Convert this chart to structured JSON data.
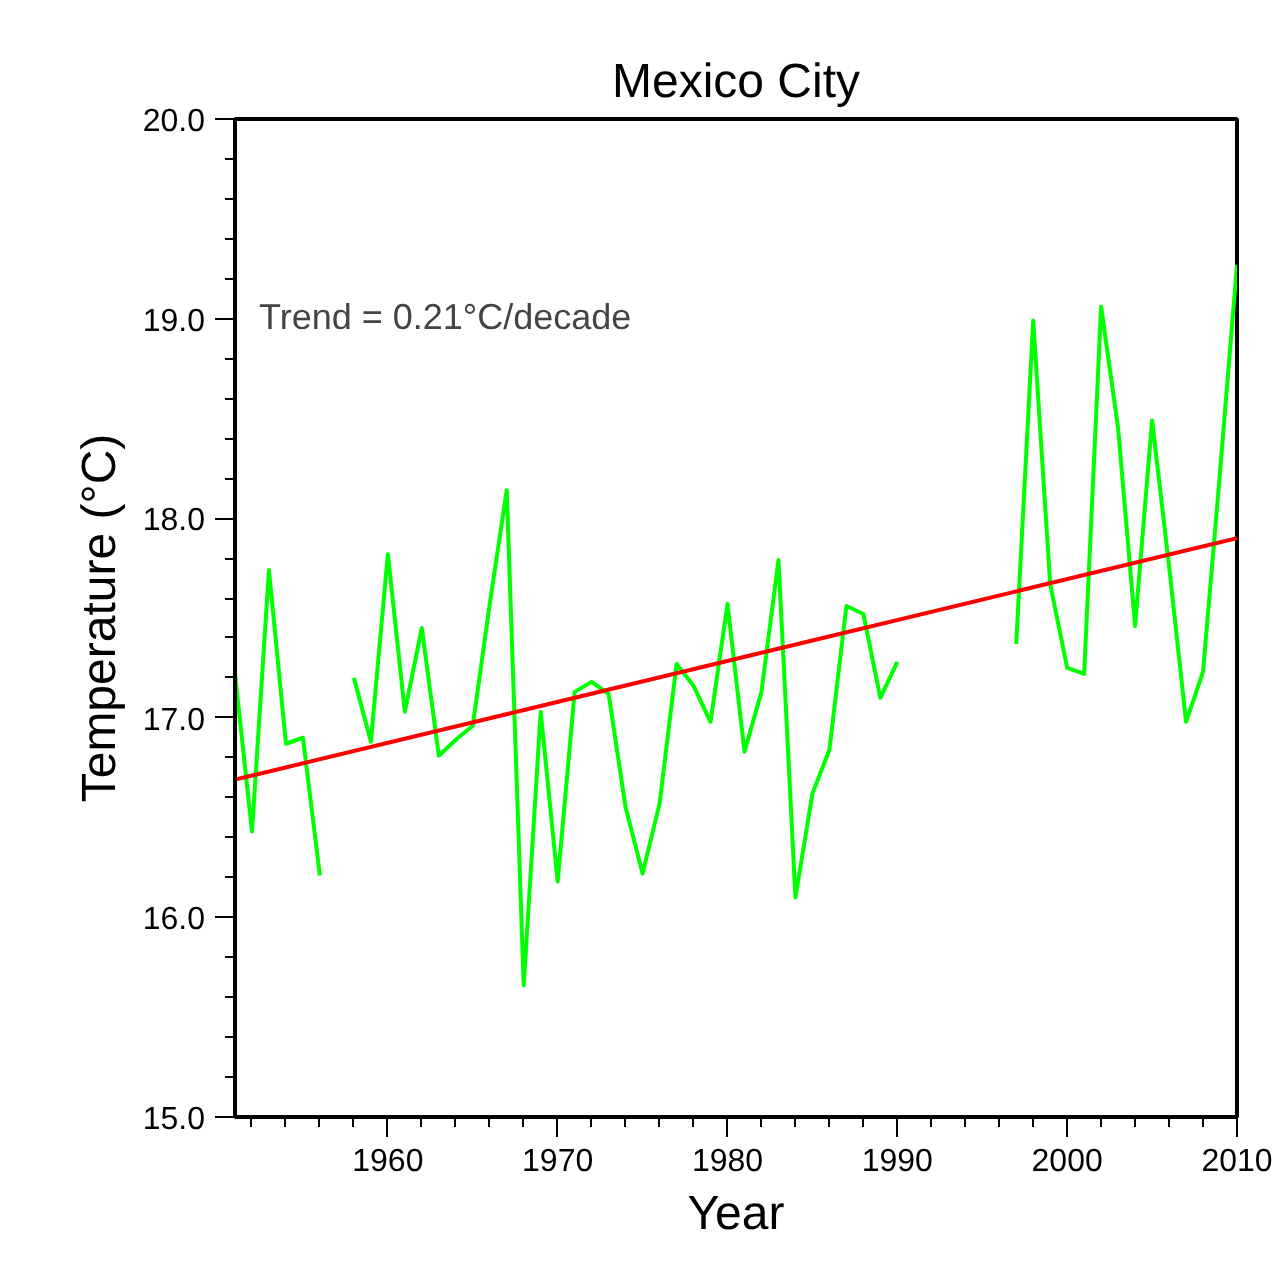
{
  "chart_data": {
    "type": "line",
    "title": "Mexico City",
    "xlabel": "Year",
    "ylabel": "Temperature (°C)",
    "annotations": [
      "Trend = 0.21°C/decade"
    ],
    "x": [
      1951,
      1952,
      1953,
      1954,
      1955,
      1956,
      1957,
      1958,
      1959,
      1960,
      1961,
      1962,
      1963,
      1964,
      1965,
      1966,
      1967,
      1968,
      1969,
      1970,
      1971,
      1972,
      1973,
      1974,
      1975,
      1976,
      1977,
      1978,
      1979,
      1980,
      1981,
      1982,
      1983,
      1984,
      1985,
      1986,
      1987,
      1988,
      1989,
      1990,
      1991,
      1992,
      1993,
      1994,
      1995,
      1996,
      1997,
      1998,
      1999,
      2000,
      2001,
      2002,
      2003,
      2004,
      2005,
      2006,
      2007,
      2008,
      2009,
      2010
    ],
    "series": [
      {
        "color": "#00ff00",
        "values": [
          17.22,
          16.43,
          17.74,
          16.87,
          16.9,
          16.21,
          null,
          17.2,
          16.88,
          17.82,
          17.03,
          17.45,
          16.81,
          16.89,
          16.96,
          17.57,
          18.14,
          15.66,
          17.03,
          16.18,
          17.13,
          17.18,
          17.12,
          16.55,
          16.22,
          16.57,
          17.27,
          17.16,
          16.98,
          17.57,
          16.83,
          17.13,
          17.79,
          16.1,
          16.62,
          16.84,
          17.56,
          17.52,
          17.1,
          17.28,
          null,
          null,
          null,
          null,
          null,
          null,
          17.37,
          18.99,
          17.67,
          17.25,
          17.22,
          19.06,
          18.45,
          17.46,
          18.49,
          17.76,
          16.98,
          17.23,
          18.23,
          19.27
        ]
      },
      {
        "type": "line",
        "color": "#ff0000",
        "x": [
          1951,
          2010
        ],
        "values": [
          16.69,
          17.9
        ]
      }
    ],
    "xlim": [
      1951,
      2010
    ],
    "xticks": [
      {
        "value": 1952,
        "label": null
      },
      {
        "value": 1954,
        "label": null
      },
      {
        "value": 1956,
        "label": null
      },
      {
        "value": 1958,
        "label": null
      },
      1960,
      {
        "value": 1962,
        "label": null
      },
      {
        "value": 1964,
        "label": null
      },
      {
        "value": 1966,
        "label": null
      },
      {
        "value": 1968,
        "label": null
      },
      1970,
      {
        "value": 1972,
        "label": null
      },
      {
        "value": 1974,
        "label": null
      },
      {
        "value": 1976,
        "label": null
      },
      {
        "value": 1978,
        "label": null
      },
      1980,
      {
        "value": 1982,
        "label": null
      },
      {
        "value": 1984,
        "label": null
      },
      {
        "value": 1986,
        "label": null
      },
      {
        "value": 1988,
        "label": null
      },
      1990,
      {
        "value": 1992,
        "label": null
      },
      {
        "value": 1994,
        "label": null
      },
      {
        "value": 1996,
        "label": null
      },
      {
        "value": 1998,
        "label": null
      },
      2000,
      {
        "value": 2002,
        "label": null
      },
      {
        "value": 2004,
        "label": null
      },
      {
        "value": 2006,
        "label": null
      },
      {
        "value": 2008,
        "label": null
      },
      2010
    ],
    "ylim": [
      15,
      20
    ],
    "yticks": [
      {
        "value": 15,
        "label": "15.0"
      },
      {
        "value": 15.2,
        "label": null
      },
      {
        "value": 15.4,
        "label": null
      },
      {
        "value": 15.6,
        "label": null
      },
      {
        "value": 15.8,
        "label": null
      },
      {
        "value": 16,
        "label": "16.0"
      },
      {
        "value": 16.2,
        "label": null
      },
      {
        "value": 16.4,
        "label": null
      },
      {
        "value": 16.6,
        "label": null
      },
      {
        "value": 16.8,
        "label": null
      },
      {
        "value": 17,
        "label": "17.0"
      },
      {
        "value": 17.2,
        "label": null
      },
      {
        "value": 17.4,
        "label": null
      },
      {
        "value": 17.6,
        "label": null
      },
      {
        "value": 17.8,
        "label": null
      },
      {
        "value": 18,
        "label": "18.0"
      },
      {
        "value": 18.2,
        "label": null
      },
      {
        "value": 18.4,
        "label": null
      },
      {
        "value": 18.6,
        "label": null
      },
      {
        "value": 18.8,
        "label": null
      },
      {
        "value": 19,
        "label": "19.0"
      },
      {
        "value": 19.2,
        "label": null
      },
      {
        "value": 19.4,
        "label": null
      },
      {
        "value": 19.6,
        "label": null
      },
      {
        "value": 19.8,
        "label": null
      },
      {
        "value": 20,
        "label": "20.0"
      }
    ],
    "line_style": "solid",
    "marker": "none",
    "grid": false
  }
}
